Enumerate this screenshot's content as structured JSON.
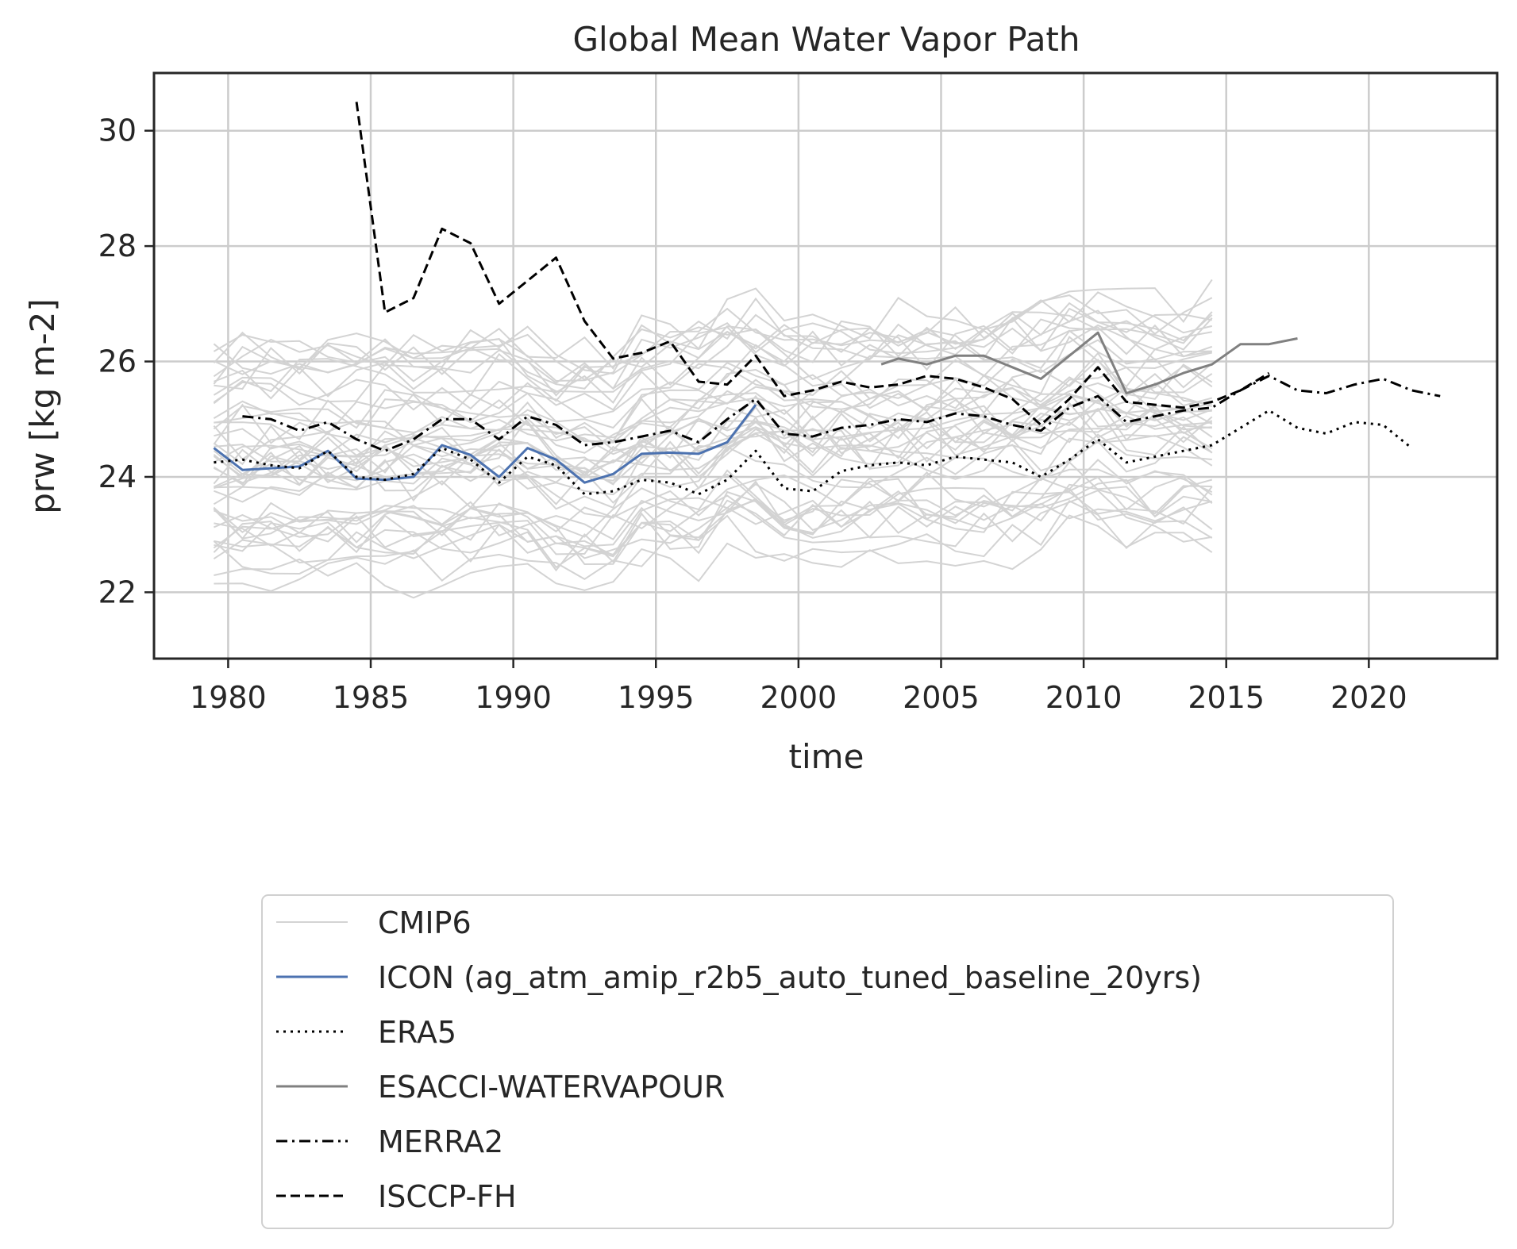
{
  "chart_data": {
    "type": "line",
    "title": "Global Mean Water Vapor Path",
    "xlabel": "time",
    "ylabel": "prw [kg m-2]",
    "xlim": [
      1977.4,
      2024.5
    ],
    "ylim": [
      20.85,
      31.0
    ],
    "xticks": [
      "1980",
      "1985",
      "1990",
      "1995",
      "2000",
      "2005",
      "2010",
      "2015",
      "2020"
    ],
    "yticks": [
      "22",
      "24",
      "26",
      "28",
      "30"
    ],
    "grid": true,
    "legend_position": "below the plot, centered",
    "legend": [
      "CMIP6",
      "ICON (ag_atm_amip_r2b5_auto_tuned_baseline_20yrs)",
      "ERA5",
      "ESACCI-WATERVAPOUR",
      "MERRA2",
      "ISCCP-FH"
    ],
    "cmip6": {
      "x_start": 1979.5,
      "x_end": 2014.5,
      "count": 46,
      "value_range": [
        21.3,
        28.5
      ],
      "note": "ensemble of individual model series, drawn in light grey"
    },
    "series": [
      {
        "name": "ICON (ag_atm_amip_r2b5_auto_tuned_baseline_20yrs)",
        "color": "#4c72b0",
        "style": "solid",
        "x": [
          1979.5,
          1980.5,
          1981.5,
          1982.5,
          1983.5,
          1984.5,
          1985.5,
          1986.5,
          1987.5,
          1988.5,
          1989.5,
          1990.5,
          1991.5,
          1992.5,
          1993.5,
          1994.5,
          1995.5,
          1996.5,
          1997.5,
          1998.5
        ],
        "values": [
          24.5,
          24.12,
          24.15,
          24.18,
          24.45,
          23.97,
          23.95,
          24.0,
          24.55,
          24.38,
          24.0,
          24.5,
          24.3,
          23.9,
          24.05,
          24.4,
          24.42,
          24.4,
          24.6,
          25.25
        ]
      },
      {
        "name": "ERA5",
        "color": "#000000",
        "style": "dotted",
        "x": [
          1979.5,
          1980.5,
          1981.5,
          1982.5,
          1983.5,
          1984.5,
          1985.5,
          1986.5,
          1987.5,
          1988.5,
          1989.5,
          1990.5,
          1991.5,
          1992.5,
          1993.5,
          1994.5,
          1995.5,
          1996.5,
          1997.5,
          1998.5,
          1999.5,
          2000.5,
          2001.5,
          2002.5,
          2003.5,
          2004.5,
          2005.5,
          2006.5,
          2007.5,
          2008.5,
          2009.5,
          2010.5,
          2011.5,
          2012.5,
          2013.5,
          2014.5,
          2015.5,
          2016.5,
          2017.5,
          2018.5,
          2019.5,
          2020.5,
          2021.5
        ],
        "values": [
          24.25,
          24.3,
          24.2,
          24.15,
          24.45,
          24.0,
          23.95,
          24.05,
          24.5,
          24.3,
          23.9,
          24.35,
          24.2,
          23.7,
          23.75,
          23.95,
          23.9,
          23.7,
          23.95,
          24.45,
          23.8,
          23.75,
          24.1,
          24.2,
          24.25,
          24.2,
          24.35,
          24.3,
          24.25,
          24.0,
          24.3,
          24.65,
          24.25,
          24.35,
          24.45,
          24.55,
          24.85,
          25.15,
          24.85,
          24.75,
          24.95,
          24.9,
          24.5
        ]
      },
      {
        "name": "ESACCI-WATERVAPOUR",
        "color": "#808080",
        "style": "solid",
        "x": [
          2002.9,
          2003.5,
          2004.5,
          2005.5,
          2006.5,
          2007.5,
          2008.5,
          2009.5,
          2010.5,
          2011.5,
          2012.5,
          2013.5,
          2014.5,
          2015.5,
          2016.5,
          2017.5
        ],
        "values": [
          25.95,
          26.05,
          25.95,
          26.1,
          26.1,
          25.9,
          25.7,
          26.1,
          26.5,
          25.45,
          25.6,
          25.8,
          25.95,
          26.3,
          26.3,
          26.4
        ]
      },
      {
        "name": "MERRA2",
        "color": "#000000",
        "style": "dashdot",
        "x": [
          1980.5,
          1981.5,
          1982.5,
          1983.5,
          1984.5,
          1985.5,
          1986.5,
          1987.5,
          1988.5,
          1989.5,
          1990.5,
          1991.5,
          1992.5,
          1993.5,
          1994.5,
          1995.5,
          1996.5,
          1997.5,
          1998.5,
          1999.5,
          2000.5,
          2001.5,
          2002.5,
          2003.5,
          2004.5,
          2005.5,
          2006.5,
          2007.5,
          2008.5,
          2009.5,
          2010.5,
          2011.5,
          2012.5,
          2013.5,
          2014.5,
          2015.5,
          2016.5,
          2017.5,
          2018.5,
          2019.5,
          2020.5,
          2021.5,
          2022.5
        ],
        "values": [
          25.05,
          25.0,
          24.8,
          24.95,
          24.65,
          24.45,
          24.65,
          25.0,
          25.0,
          24.65,
          25.05,
          24.9,
          24.55,
          24.6,
          24.7,
          24.8,
          24.6,
          25.0,
          25.35,
          24.75,
          24.7,
          24.85,
          24.9,
          25.0,
          24.95,
          25.1,
          25.05,
          24.9,
          24.8,
          25.2,
          25.4,
          24.95,
          25.05,
          25.15,
          25.2,
          25.5,
          25.75,
          25.5,
          25.45,
          25.6,
          25.7,
          25.5,
          25.4
        ]
      },
      {
        "name": "ISCCP-FH",
        "color": "#000000",
        "style": "dashed",
        "x": [
          1984.5,
          1985.5,
          1986.5,
          1987.5,
          1988.5,
          1989.5,
          1990.5,
          1991.5,
          1992.5,
          1993.5,
          1994.5,
          1995.5,
          1996.5,
          1997.5,
          1998.5,
          1999.5,
          2000.5,
          2001.5,
          2002.5,
          2003.5,
          2004.5,
          2005.5,
          2006.5,
          2007.5,
          2008.5,
          2009.5,
          2010.5,
          2011.5,
          2012.5,
          2013.5,
          2014.5,
          2015.5,
          2016.5
        ],
        "values": [
          30.5,
          26.85,
          27.1,
          28.3,
          28.05,
          27.0,
          27.4,
          27.8,
          26.7,
          26.05,
          26.15,
          26.35,
          25.65,
          25.6,
          26.1,
          25.4,
          25.5,
          25.65,
          25.55,
          25.6,
          25.75,
          25.7,
          25.55,
          25.35,
          24.9,
          25.35,
          25.9,
          25.3,
          25.25,
          25.2,
          25.3,
          25.5,
          25.8
        ]
      }
    ]
  }
}
